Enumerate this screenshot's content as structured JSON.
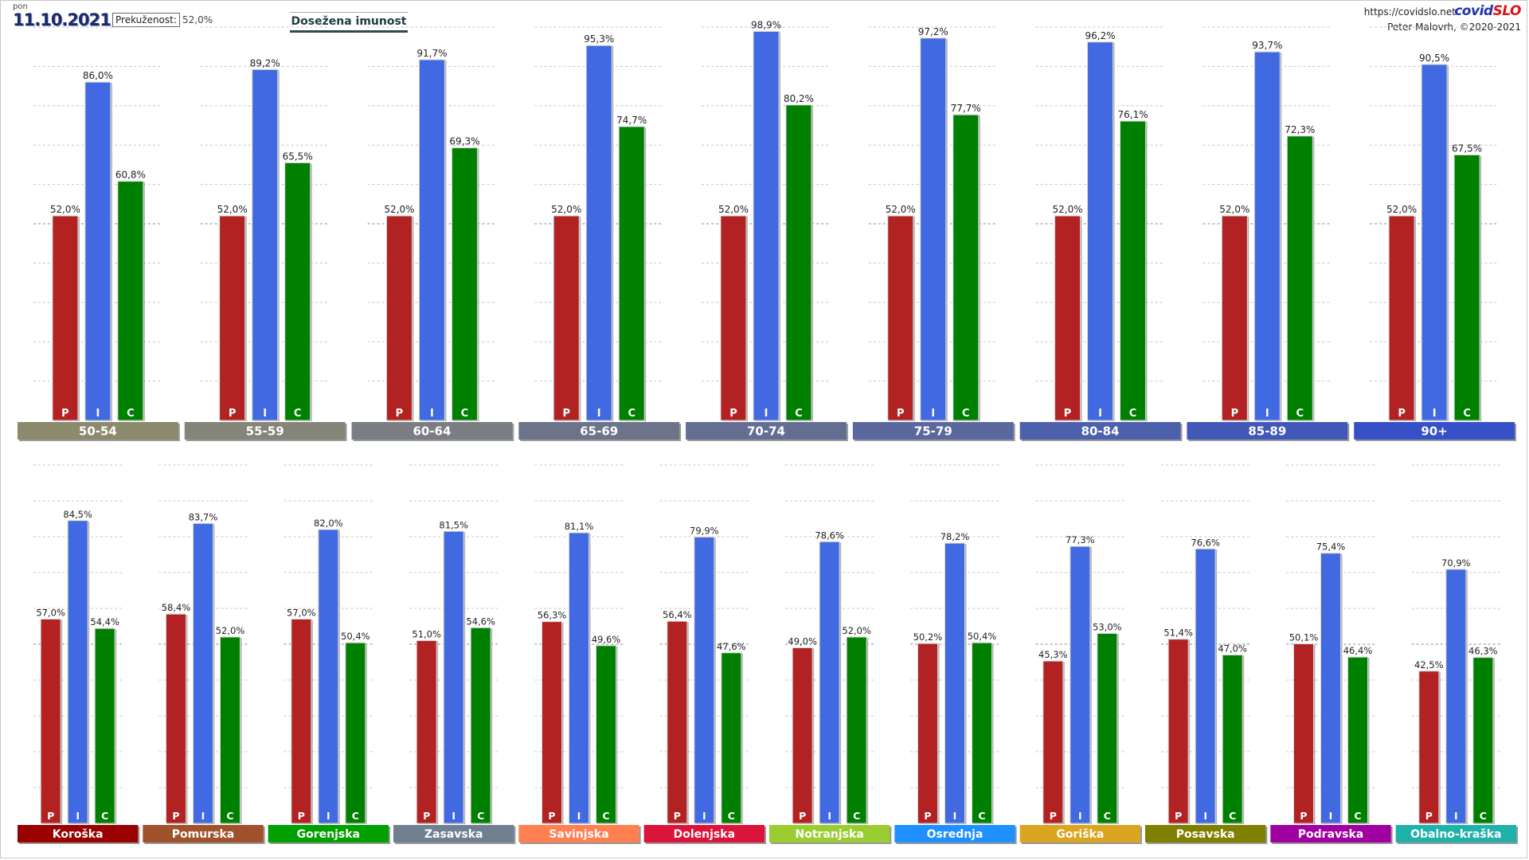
{
  "header": {
    "day": "pon",
    "date": "11.10.2021",
    "prekuzenost_label": "Prekuženost:",
    "prekuzenost_value": "52,0%",
    "title": "Dosežena imunost",
    "source_url": "https://covidslo.net",
    "brand_part1": "covid",
    "brand_part2": "SLO",
    "author": "Peter Malovrh, ©2020-2021"
  },
  "colors": {
    "P": "#b22222",
    "I": "#4169e1",
    "C": "#008000"
  },
  "bar_letters": [
    "P",
    "I",
    "C"
  ],
  "chart_data": [
    {
      "type": "bar",
      "title": "",
      "ylim": [
        0,
        100
      ],
      "grid": "dashed horizontal lines",
      "series": [
        {
          "name": "P",
          "values": [
            52.0,
            52.0,
            52.0,
            52.0,
            52.0,
            52.0,
            52.0,
            52.0,
            52.0
          ]
        },
        {
          "name": "I",
          "values": [
            86.0,
            89.2,
            91.7,
            95.3,
            98.9,
            97.2,
            96.2,
            93.7,
            90.5
          ]
        },
        {
          "name": "C",
          "values": [
            60.8,
            65.5,
            69.3,
            74.7,
            80.2,
            77.7,
            76.1,
            72.3,
            67.5
          ]
        }
      ],
      "categories": [
        "50-54",
        "55-59",
        "60-64",
        "65-69",
        "70-74",
        "75-79",
        "80-84",
        "85-89",
        "90+"
      ],
      "labels": {
        "P": [
          "52,0%",
          "52,0%",
          "52,0%",
          "52,0%",
          "52,0%",
          "52,0%",
          "52,0%",
          "52,0%",
          "52,0%"
        ],
        "I": [
          "86,0%",
          "89,2%",
          "91,7%",
          "95,3%",
          "98,9%",
          "97,2%",
          "96,2%",
          "93,7%",
          "90,5%"
        ],
        "C": [
          "60,8%",
          "65,5%",
          "69,3%",
          "74,7%",
          "80,2%",
          "77,7%",
          "76,1%",
          "72,3%",
          "67,5%"
        ]
      },
      "category_colors": [
        "#8b8a6d",
        "#848478",
        "#7a7d82",
        "#6d7489",
        "#646e93",
        "#5a689e",
        "#4d60ac",
        "#4258b8",
        "#3650c8"
      ]
    },
    {
      "type": "bar",
      "title": "",
      "ylim": [
        0,
        100
      ],
      "grid": "dashed horizontal lines",
      "series": [
        {
          "name": "P",
          "values": [
            57.0,
            58.4,
            57.0,
            51.0,
            56.3,
            56.4,
            49.0,
            50.2,
            45.3,
            51.4,
            50.1,
            42.5
          ]
        },
        {
          "name": "I",
          "values": [
            84.5,
            83.7,
            82.0,
            81.5,
            81.1,
            79.9,
            78.6,
            78.2,
            77.3,
            76.6,
            75.4,
            70.9
          ]
        },
        {
          "name": "C",
          "values": [
            54.4,
            52.0,
            50.4,
            54.6,
            49.6,
            47.6,
            52.0,
            50.4,
            53.0,
            47.0,
            46.4,
            46.3
          ]
        }
      ],
      "categories": [
        "Koroška",
        "Pomurska",
        "Gorenjska",
        "Zasavska",
        "Savinjska",
        "Dolenjska",
        "Notranjska",
        "Osrednja",
        "Goriška",
        "Posavska",
        "Podravska",
        "Obalno-kraška"
      ],
      "labels": {
        "P": [
          "57,0%",
          "58,4%",
          "57,0%",
          "51,0%",
          "56,3%",
          "56,4%",
          "49,0%",
          "50,2%",
          "45,3%",
          "51,4%",
          "50,1%",
          "42,5%"
        ],
        "I": [
          "84,5%",
          "83,7%",
          "82,0%",
          "81,5%",
          "81,1%",
          "79,9%",
          "78,6%",
          "78,2%",
          "77,3%",
          "76,6%",
          "75,4%",
          "70,9%"
        ],
        "C": [
          "54,4%",
          "52,0%",
          "50,4%",
          "54,6%",
          "49,6%",
          "47,6%",
          "52,0%",
          "50,4%",
          "53,0%",
          "47,0%",
          "46,4%",
          "46,3%"
        ]
      },
      "category_colors": [
        "#990000",
        "#a0522d",
        "#00a000",
        "#708090",
        "#ff7f50",
        "#dc143c",
        "#9acd32",
        "#1e90ff",
        "#daa520",
        "#808000",
        "#a000a0",
        "#20b2aa"
      ]
    }
  ]
}
